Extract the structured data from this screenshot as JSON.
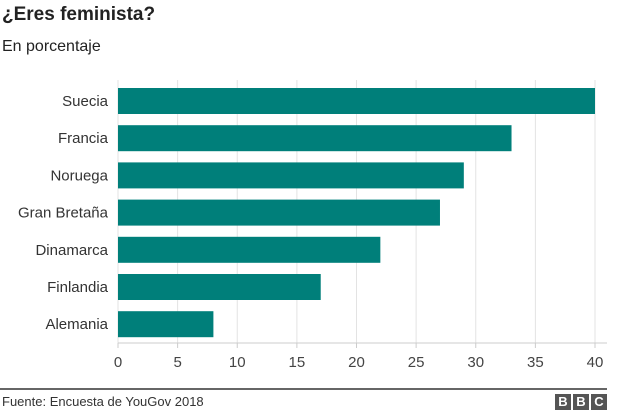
{
  "chart_data": {
    "type": "bar",
    "orientation": "horizontal",
    "title": "¿Eres feminista?",
    "subtitle": "En porcentaje",
    "categories": [
      "Suecia",
      "Francia",
      "Noruega",
      "Gran Bretaña",
      "Dinamarca",
      "Finlandia",
      "Alemania"
    ],
    "values": [
      40,
      33,
      29,
      27,
      22,
      17,
      8
    ],
    "xlim": [
      0,
      40
    ],
    "xticks": [
      0,
      5,
      10,
      15,
      20,
      25,
      30,
      35,
      40
    ],
    "grid": true,
    "bar_color": "#007f7a",
    "source": "Fuente: Encuesta de YouGov 2018"
  },
  "logo": {
    "text": [
      "B",
      "B",
      "C"
    ]
  }
}
